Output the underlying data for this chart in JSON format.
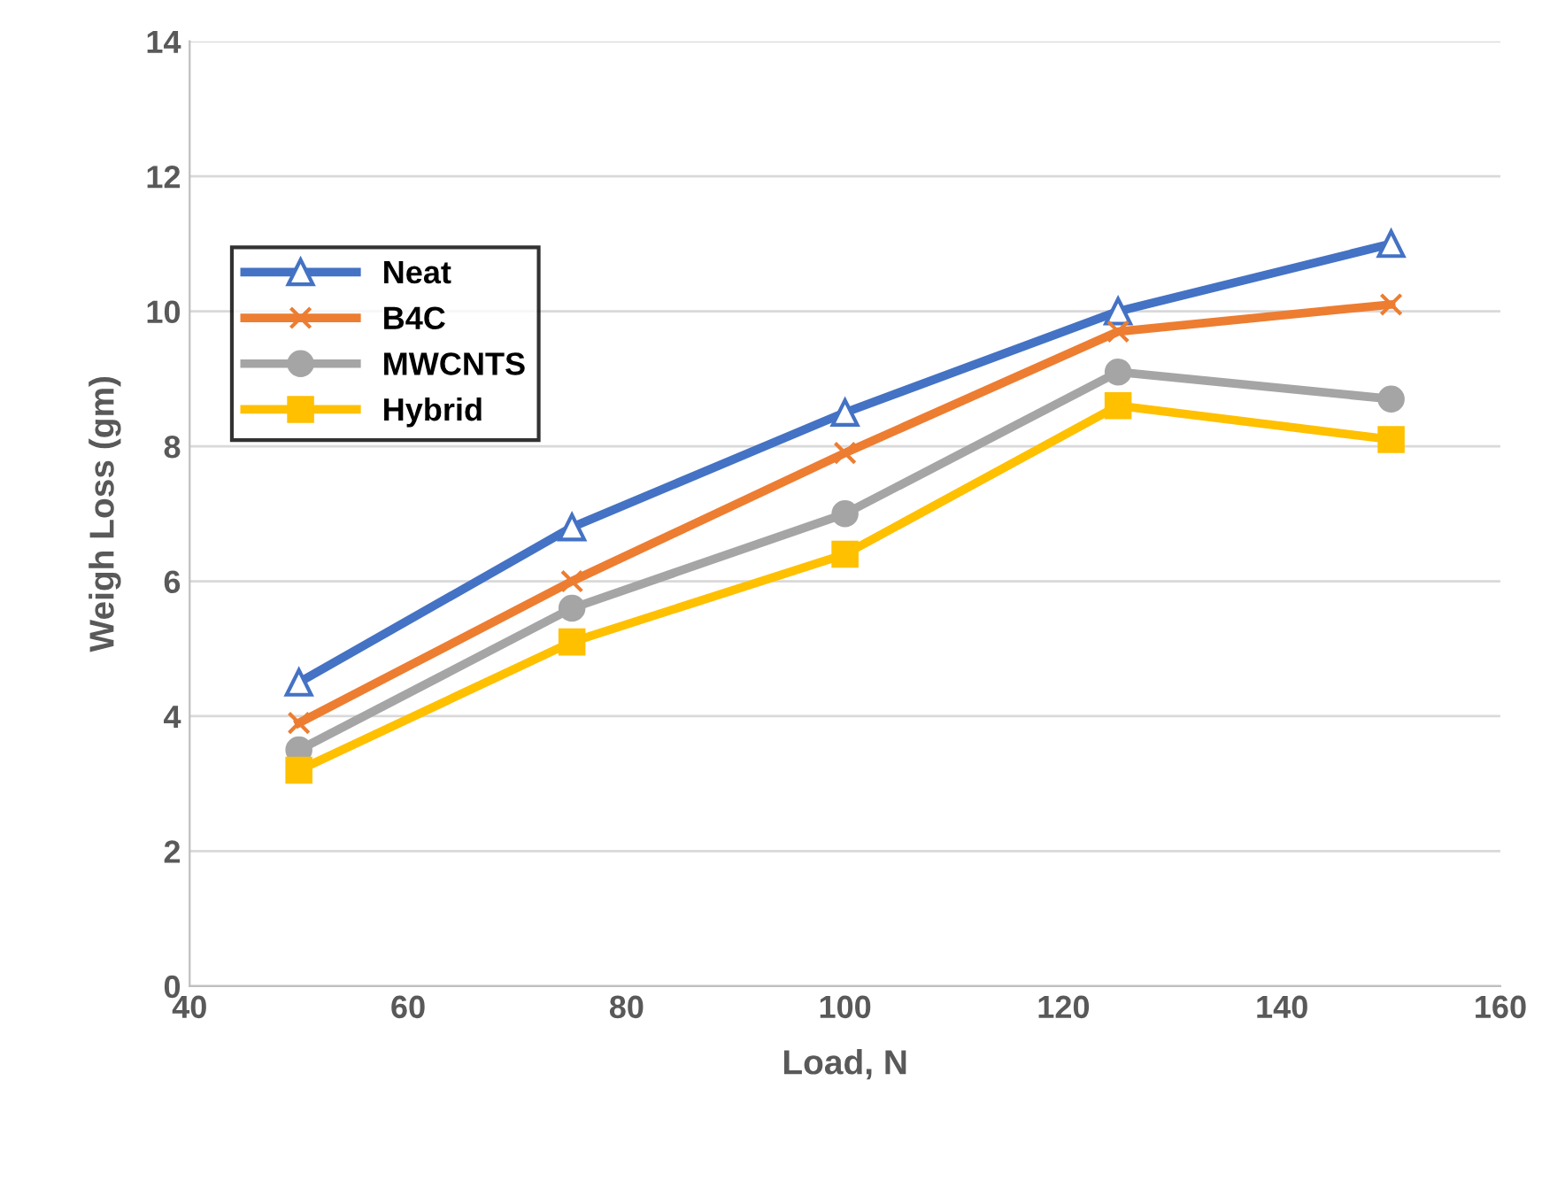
{
  "chart_data": {
    "type": "line",
    "xlabel": "Load, N",
    "ylabel": "Weigh Loss (gm)",
    "x": [
      50,
      75,
      100,
      125,
      150
    ],
    "series": [
      {
        "name": "Neat",
        "color": "#4472c4",
        "marker": "triangle",
        "values": [
          4.5,
          6.8,
          8.5,
          10.0,
          11.0
        ]
      },
      {
        "name": "B4C",
        "color": "#ed7d31",
        "marker": "cross",
        "values": [
          3.9,
          6.0,
          7.9,
          9.7,
          10.1
        ]
      },
      {
        "name": "MWCNTS",
        "color": "#a5a5a5",
        "marker": "circle",
        "values": [
          3.5,
          5.6,
          7.0,
          9.1,
          8.7
        ]
      },
      {
        "name": "Hybrid",
        "color": "#ffc000",
        "marker": "square",
        "values": [
          3.2,
          5.1,
          6.4,
          8.6,
          8.1
        ]
      }
    ],
    "xlim": [
      40,
      160
    ],
    "xticks": [
      40,
      60,
      80,
      100,
      120,
      140,
      160
    ],
    "ylim": [
      0,
      14
    ],
    "yticks": [
      0,
      2,
      4,
      6,
      8,
      10,
      12,
      14
    ],
    "grid": "y",
    "legend": "left",
    "line_style": "solid"
  }
}
